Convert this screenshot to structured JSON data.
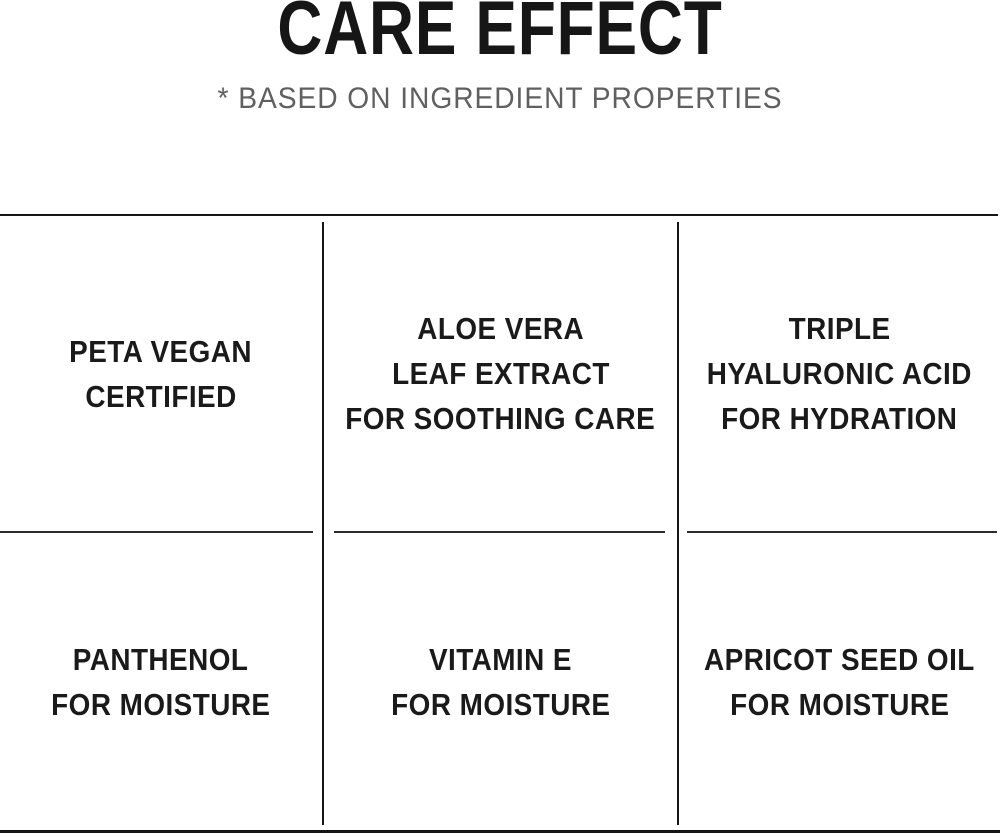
{
  "header": {
    "title": "CARE EFFECT",
    "subtitle": "* BASED ON INGREDIENT PROPERTIES"
  },
  "colors": {
    "background": "#ffffff",
    "title_text": "#161616",
    "subtitle_text": "#606060",
    "cell_text": "#1a1a1a",
    "rule": "#151515"
  },
  "grid": {
    "columns": 3,
    "rows": [
      {
        "cells": [
          {
            "name": "peta-vegan-certified",
            "lines": [
              "PETA VEGAN",
              "CERTIFIED"
            ]
          },
          {
            "name": "aloe-vera-leaf-extract",
            "lines": [
              "ALOE VERA",
              "LEAF EXTRACT",
              "FOR SOOTHING CARE"
            ]
          },
          {
            "name": "triple-hyaluronic-acid",
            "lines": [
              "TRIPLE",
              "HYALURONIC ACID",
              "FOR HYDRATION"
            ]
          }
        ]
      },
      {
        "cells": [
          {
            "name": "panthenol",
            "lines": [
              "PANTHENOL",
              "FOR MOISTURE"
            ]
          },
          {
            "name": "vitamin-e",
            "lines": [
              "VITAMIN E",
              "FOR MOISTURE"
            ]
          },
          {
            "name": "apricot-seed-oil",
            "lines": [
              "APRICOT SEED OIL",
              "FOR MOISTURE"
            ]
          }
        ]
      }
    ]
  }
}
